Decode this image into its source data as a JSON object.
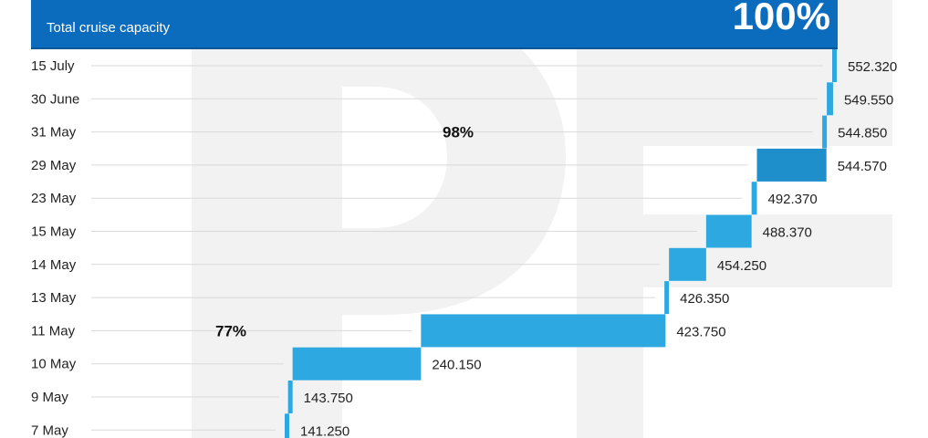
{
  "header": {
    "label": "Total cruise capacity",
    "value": "100%"
  },
  "colors": {
    "banner": "#0b6cbd",
    "bar": "#2ea8e0",
    "bar_dark": "#1f8fcc",
    "gridline": "#d9d9d9",
    "watermark": "#f2f2f2"
  },
  "chart_data": {
    "type": "bar",
    "orientation": "horizontal",
    "style": "waterfall",
    "categories": [
      "15 July",
      "30 June",
      "31 May",
      "29 May",
      "23 May",
      "15 May",
      "14 May",
      "13 May",
      "11 May",
      "10 May",
      "9 May",
      "7 May"
    ],
    "cumulative_values": [
      552.32,
      549.55,
      544.85,
      544.57,
      492.37,
      488.37,
      454.25,
      426.35,
      423.75,
      240.15,
      143.75,
      141.25
    ],
    "value_labels": [
      "552.320",
      "549.550",
      "544.850",
      "544.570",
      "492.370",
      "488.370",
      "454.250",
      "426.350",
      "423.750",
      "240.150",
      "143.750",
      "141.250"
    ],
    "annotations": [
      {
        "text": "98%",
        "category": "31 May"
      },
      {
        "text": "77%",
        "category": "11 May"
      }
    ]
  }
}
